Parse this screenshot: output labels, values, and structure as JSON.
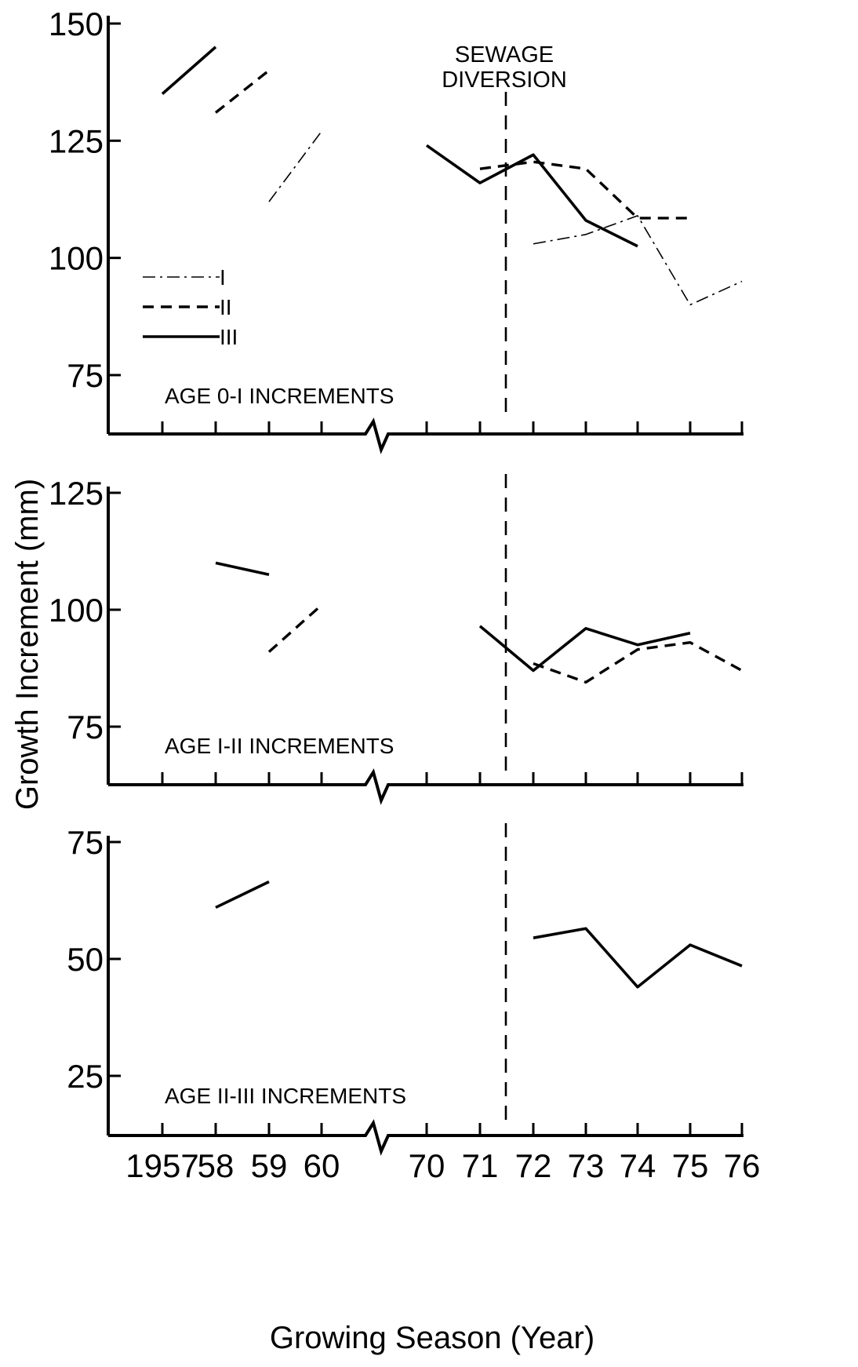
{
  "figure": {
    "xlabel": "Growing Season (Year)",
    "ylabel": "Growth Increment (mm)",
    "x_ticks": [
      "1957",
      "58",
      "59",
      "60",
      "70",
      "71",
      "72",
      "73",
      "74",
      "75",
      "76"
    ],
    "event_label_line1": "SEWAGE",
    "event_label_line2": "DIVERSION",
    "event_position_year": 1971.5,
    "axis_break_between": [
      1960,
      1970
    ]
  },
  "chart_data": [
    {
      "type": "line",
      "title": "AGE 0-I INCREMENTS",
      "ylim": [
        62,
        150
      ],
      "yticks": [
        75,
        100,
        125,
        150
      ],
      "legend": {
        "placement": "middle-left",
        "entries": [
          "I",
          "II",
          "III"
        ]
      },
      "series": [
        {
          "name": "I",
          "style": "dash-dot",
          "width": "thin",
          "segments": [
            [
              [
                1959,
                112
              ],
              [
                1960,
                127
              ]
            ],
            [
              [
                1972,
                103
              ],
              [
                1973,
                105
              ],
              [
                1974,
                109
              ],
              [
                1975,
                90
              ],
              [
                1976,
                95
              ]
            ]
          ]
        },
        {
          "name": "II",
          "style": "dashed",
          "width": "thick",
          "segments": [
            [
              [
                1958,
                131
              ],
              [
                1959,
                140
              ]
            ],
            [
              [
                1971,
                119
              ],
              [
                1972,
                120.5
              ],
              [
                1973,
                119
              ],
              [
                1974,
                108.5
              ],
              [
                1975,
                108.5
              ]
            ]
          ]
        },
        {
          "name": "III",
          "style": "solid",
          "width": "thick",
          "segments": [
            [
              [
                1957,
                135
              ],
              [
                1958,
                145
              ]
            ],
            [
              [
                1970,
                124
              ],
              [
                1971,
                116
              ],
              [
                1972,
                122
              ],
              [
                1973,
                108
              ],
              [
                1974,
                102.5
              ]
            ]
          ]
        }
      ]
    },
    {
      "type": "line",
      "title": "AGE I-II INCREMENTS",
      "ylim": [
        62,
        125
      ],
      "yticks": [
        75,
        100,
        125
      ],
      "series": [
        {
          "name": "II",
          "style": "dashed",
          "width": "thick",
          "segments": [
            [
              [
                1959,
                91
              ],
              [
                1960,
                101
              ]
            ],
            [
              [
                1972,
                88.5
              ],
              [
                1973,
                84.5
              ],
              [
                1974,
                91.5
              ],
              [
                1975,
                93
              ],
              [
                1976,
                87
              ]
            ]
          ]
        },
        {
          "name": "III",
          "style": "solid",
          "width": "thick",
          "segments": [
            [
              [
                1958,
                110
              ],
              [
                1959,
                107.5
              ]
            ],
            [
              [
                1971,
                96.5
              ],
              [
                1972,
                87
              ],
              [
                1973,
                96
              ],
              [
                1974,
                92.5
              ],
              [
                1975,
                95
              ]
            ]
          ]
        }
      ]
    },
    {
      "type": "line",
      "title": "AGE II-III INCREMENTS",
      "ylim": [
        12,
        75
      ],
      "yticks": [
        25,
        50,
        75
      ],
      "series": [
        {
          "name": "III",
          "style": "solid",
          "width": "thick",
          "segments": [
            [
              [
                1958,
                61
              ],
              [
                1959,
                66.5
              ]
            ],
            [
              [
                1972,
                54.5
              ],
              [
                1973,
                56.5
              ],
              [
                1974,
                44
              ],
              [
                1975,
                53
              ],
              [
                1976,
                48.5
              ]
            ]
          ]
        }
      ]
    }
  ]
}
